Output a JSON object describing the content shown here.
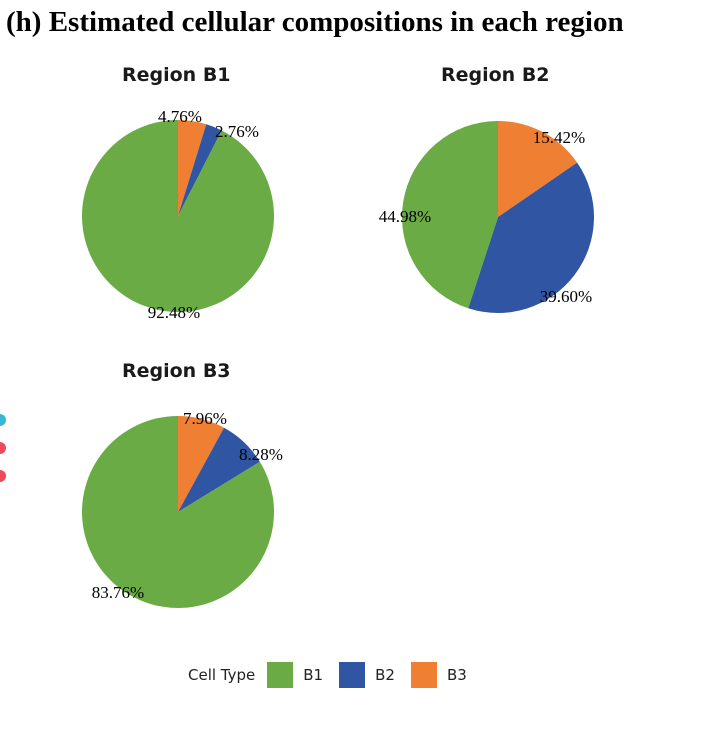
{
  "figure_title": "(h) Estimated cellular compositions in each region",
  "colors": {
    "B1": "#6aab45",
    "B2": "#2f55a3",
    "B3": "#ef7f33"
  },
  "legend": {
    "title": "Cell Type",
    "items": [
      {
        "label": "B1",
        "color": "#6aab45"
      },
      {
        "label": "B2",
        "color": "#2f55a3"
      },
      {
        "label": "B3",
        "color": "#ef7f33"
      }
    ]
  },
  "edge_dots": [
    "#37b7d4",
    "#ee4b5a",
    "#ee4b5a"
  ],
  "chart_data": [
    {
      "type": "pie",
      "title": "Region B1",
      "slices": [
        {
          "category": "B3",
          "value": 4.76,
          "label": "4.76%"
        },
        {
          "category": "B2",
          "value": 2.76,
          "label": "2.76%"
        },
        {
          "category": "B1",
          "value": 92.48,
          "label": "92.48%"
        }
      ]
    },
    {
      "type": "pie",
      "title": "Region B2",
      "slices": [
        {
          "category": "B3",
          "value": 15.42,
          "label": "15.42%"
        },
        {
          "category": "B2",
          "value": 39.6,
          "label": "39.60%"
        },
        {
          "category": "B1",
          "value": 44.98,
          "label": "44.98%"
        }
      ]
    },
    {
      "type": "pie",
      "title": "Region B3",
      "slices": [
        {
          "category": "B3",
          "value": 7.96,
          "label": "7.96%"
        },
        {
          "category": "B2",
          "value": 8.28,
          "label": "8.28%"
        },
        {
          "category": "B1",
          "value": 83.76,
          "label": "83.76%"
        }
      ]
    }
  ]
}
